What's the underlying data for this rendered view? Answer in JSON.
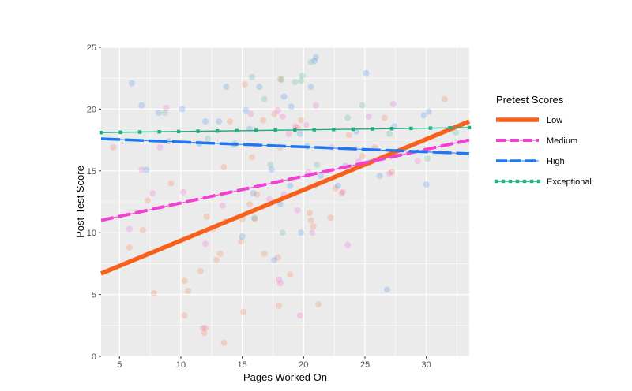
{
  "chart_data": {
    "type": "scatter",
    "xlabel": "Pages Worked On",
    "ylabel": "Post-Test Score",
    "xlim": [
      3.5,
      33.5
    ],
    "ylim": [
      0,
      25
    ],
    "xticks": [
      5,
      10,
      15,
      20,
      25,
      30
    ],
    "yticks": [
      0,
      5,
      10,
      15,
      20,
      25
    ],
    "grid": true,
    "legend_title": "Pretest Scores",
    "legend_position": "right",
    "series": [
      {
        "name": "Low",
        "color": "#F8611B",
        "line": {
          "x": [
            3.5,
            33.5
          ],
          "y": [
            6.7,
            19.0
          ]
        },
        "linestyle": "solid",
        "points": [
          [
            4.5,
            16.9
          ],
          [
            5.8,
            8.8
          ],
          [
            6.9,
            10.2
          ],
          [
            7.3,
            12.6
          ],
          [
            7.8,
            5.1
          ],
          [
            9.2,
            14.0
          ],
          [
            10.3,
            3.3
          ],
          [
            10.3,
            6.1
          ],
          [
            10.6,
            5.3
          ],
          [
            11.6,
            6.9
          ],
          [
            11.9,
            1.9
          ],
          [
            12.0,
            2.3
          ],
          [
            12.1,
            11.3
          ],
          [
            12.6,
            10.3
          ],
          [
            12.9,
            7.8
          ],
          [
            13.2,
            8.3
          ],
          [
            13.5,
            1.1
          ],
          [
            13.5,
            15.3
          ],
          [
            13.6,
            10.9
          ],
          [
            14.0,
            19.0
          ],
          [
            14.9,
            9.3
          ],
          [
            15.0,
            11.1
          ],
          [
            15.1,
            3.6
          ],
          [
            15.2,
            22.0
          ],
          [
            15.6,
            12.3
          ],
          [
            15.8,
            16.1
          ],
          [
            16.0,
            11.1
          ],
          [
            16.2,
            13.1
          ],
          [
            16.7,
            19.1
          ],
          [
            16.8,
            8.3
          ],
          [
            17.6,
            19.6
          ],
          [
            17.9,
            8.0
          ],
          [
            18.0,
            4.1
          ],
          [
            18.1,
            16.9
          ],
          [
            18.1,
            22.4
          ],
          [
            18.9,
            6.6
          ],
          [
            19.5,
            18.5
          ],
          [
            19.8,
            19.1
          ],
          [
            20.5,
            11.6
          ],
          [
            20.6,
            11.0
          ],
          [
            20.8,
            10.5
          ],
          [
            21.2,
            4.2
          ],
          [
            22.2,
            11.2
          ],
          [
            22.6,
            13.6
          ],
          [
            23.1,
            13.2
          ],
          [
            23.7,
            17.9
          ],
          [
            24.8,
            16.2
          ],
          [
            25.8,
            16.9
          ],
          [
            26.6,
            19.3
          ],
          [
            27.2,
            14.9
          ],
          [
            31.5,
            20.8
          ]
        ]
      },
      {
        "name": "Medium",
        "color": "#F33FD3",
        "line": {
          "x": [
            3.5,
            33.5
          ],
          "y": [
            11.0,
            17.5
          ]
        },
        "linestyle": "dashed",
        "points": [
          [
            5.8,
            10.3
          ],
          [
            6.8,
            15.1
          ],
          [
            7.7,
            13.2
          ],
          [
            8.3,
            16.9
          ],
          [
            8.8,
            20.1
          ],
          [
            10.2,
            13.3
          ],
          [
            11.8,
            2.3
          ],
          [
            12.0,
            9.1
          ],
          [
            13.4,
            12.2
          ],
          [
            15.7,
            19.6
          ],
          [
            17.2,
            12.7
          ],
          [
            17.9,
            19.9
          ],
          [
            18.0,
            6.2
          ],
          [
            18.1,
            5.9
          ],
          [
            18.3,
            19.4
          ],
          [
            18.4,
            13.1
          ],
          [
            18.8,
            18.0
          ],
          [
            19.3,
            18.6
          ],
          [
            19.5,
            11.8
          ],
          [
            19.7,
            3.3
          ],
          [
            20.2,
            18.7
          ],
          [
            20.4,
            14.9
          ],
          [
            20.7,
            10.0
          ],
          [
            21.0,
            20.3
          ],
          [
            22.3,
            16.9
          ],
          [
            23.2,
            13.3
          ],
          [
            23.6,
            9.0
          ],
          [
            24.5,
            15.8
          ],
          [
            25.3,
            19.4
          ],
          [
            27.0,
            14.8
          ],
          [
            27.3,
            20.4
          ],
          [
            29.3,
            15.8
          ]
        ]
      },
      {
        "name": "High",
        "color": "#1F78F2",
        "line": {
          "x": [
            3.5,
            33.5
          ],
          "y": [
            17.6,
            16.4
          ]
        },
        "linestyle": "longdash",
        "points": [
          [
            6.0,
            22.1
          ],
          [
            6.8,
            20.3
          ],
          [
            7.2,
            15.1
          ],
          [
            8.2,
            19.7
          ],
          [
            9.0,
            17.4
          ],
          [
            10.1,
            20.0
          ],
          [
            11.5,
            17.2
          ],
          [
            12.0,
            19.0
          ],
          [
            13.1,
            19.0
          ],
          [
            13.7,
            21.8
          ],
          [
            14.4,
            17.2
          ],
          [
            15.0,
            9.7
          ],
          [
            15.3,
            19.9
          ],
          [
            15.6,
            18.4
          ],
          [
            15.9,
            13.2
          ],
          [
            16.4,
            21.8
          ],
          [
            17.4,
            15.1
          ],
          [
            17.6,
            7.8
          ],
          [
            18.1,
            12.3
          ],
          [
            18.4,
            21.0
          ],
          [
            18.9,
            13.8
          ],
          [
            19.0,
            20.2
          ],
          [
            19.7,
            18.0
          ],
          [
            19.8,
            10.0
          ],
          [
            20.3,
            17.0
          ],
          [
            20.6,
            21.8
          ],
          [
            20.9,
            23.9
          ],
          [
            21.0,
            24.2
          ],
          [
            21.4,
            14.6
          ],
          [
            22.8,
            13.8
          ],
          [
            23.4,
            15.4
          ],
          [
            24.3,
            18.2
          ],
          [
            25.1,
            22.9
          ],
          [
            25.4,
            15.7
          ],
          [
            26.2,
            14.6
          ],
          [
            26.8,
            5.4
          ],
          [
            27.4,
            18.6
          ],
          [
            29.8,
            19.5
          ],
          [
            30.0,
            13.9
          ],
          [
            30.2,
            19.8
          ]
        ]
      },
      {
        "name": "Exceptional",
        "color": "#1FAF7F",
        "line": {
          "x": [
            3.5,
            33.5
          ],
          "y": [
            18.1,
            18.5
          ]
        },
        "linestyle": "dotted",
        "points": [
          [
            8.7,
            19.7
          ],
          [
            12.2,
            17.6
          ],
          [
            14.3,
            17.1
          ],
          [
            15.8,
            22.6
          ],
          [
            16.0,
            11.2
          ],
          [
            16.8,
            20.8
          ],
          [
            17.3,
            15.5
          ],
          [
            18.2,
            22.4
          ],
          [
            18.3,
            10.0
          ],
          [
            19.3,
            22.2
          ],
          [
            19.8,
            22.3
          ],
          [
            19.9,
            22.7
          ],
          [
            20.6,
            23.8
          ],
          [
            21.1,
            15.5
          ],
          [
            23.6,
            19.3
          ],
          [
            24.8,
            20.3
          ],
          [
            27.0,
            18.0
          ],
          [
            30.1,
            16.0
          ],
          [
            32.4,
            18.1
          ]
        ]
      }
    ]
  }
}
